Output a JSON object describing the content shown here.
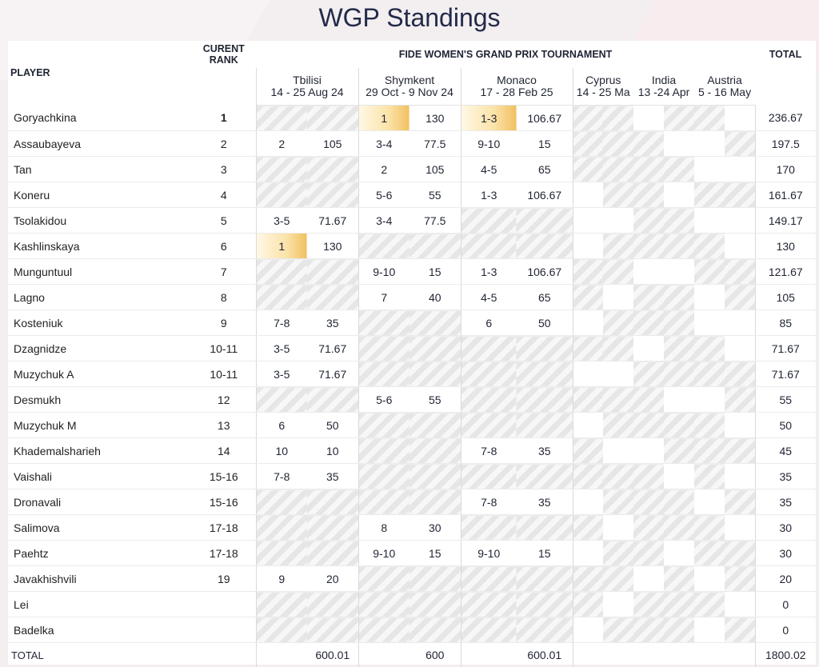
{
  "page_title": "WGP Standings",
  "headers": {
    "player": "PLAYER",
    "rank_line1": "CURENT",
    "rank_line2": "RANK",
    "tournament": "FIDE WOMEN'S GRAND PRIX TOURNAMENT",
    "total": "TOTAL"
  },
  "events": [
    {
      "name": "Tbilisi",
      "dates": "14 - 25 Aug 24"
    },
    {
      "name": "Shymkent",
      "dates": "29 Oct - 9 Nov 24"
    },
    {
      "name": "Monaco",
      "dates": "17 - 28 Feb 25"
    },
    {
      "name": "Cyprus",
      "dates": "14 - 25 Ma"
    },
    {
      "name": "India",
      "dates": "13 -24 Apr"
    },
    {
      "name": "Austria",
      "dates": "5 - 16 May"
    }
  ],
  "rows": [
    {
      "player": "Goryachkina",
      "rank": "1",
      "rank_bold": true,
      "t": [
        "",
        ""
      ],
      "s": [
        "1",
        "130"
      ],
      "m": [
        "1-3",
        "106.67"
      ],
      "total": "236.67",
      "gold_s": true,
      "gold_m": true,
      "hatch_t": true
    },
    {
      "player": "Assaubayeva",
      "rank": "2",
      "t": [
        "2",
        "105"
      ],
      "s": [
        "3-4",
        "77.5"
      ],
      "m": [
        "9-10",
        "15"
      ],
      "total": "197.5"
    },
    {
      "player": "Tan",
      "rank": "3",
      "t": [
        "",
        ""
      ],
      "s": [
        "2",
        "105"
      ],
      "m": [
        "4-5",
        "65"
      ],
      "total": "170",
      "hatch_t": true
    },
    {
      "player": "Koneru",
      "rank": "4",
      "t": [
        "",
        ""
      ],
      "s": [
        "5-6",
        "55"
      ],
      "m": [
        "1-3",
        "106.67"
      ],
      "total": "161.67",
      "hatch_t": true
    },
    {
      "player": "Tsolakidou",
      "rank": "5",
      "t": [
        "3-5",
        "71.67"
      ],
      "s": [
        "3-4",
        "77.5"
      ],
      "m": [
        "",
        ""
      ],
      "total": "149.17",
      "hatch_m": true
    },
    {
      "player": "Kashlinskaya",
      "rank": "6",
      "t": [
        "1",
        "130"
      ],
      "s": [
        "",
        ""
      ],
      "m": [
        "",
        ""
      ],
      "total": "130",
      "gold_t": true,
      "hatch_s": true,
      "hatch_m": true
    },
    {
      "player": "Munguntuul",
      "rank": "7",
      "t": [
        "",
        ""
      ],
      "s": [
        "9-10",
        "15"
      ],
      "m": [
        "1-3",
        "106.67"
      ],
      "total": "121.67",
      "hatch_t": true
    },
    {
      "player": "Lagno",
      "rank": "8",
      "t": [
        "",
        ""
      ],
      "s": [
        "7",
        "40"
      ],
      "m": [
        "4-5",
        "65"
      ],
      "total": "105",
      "hatch_t": true
    },
    {
      "player": "Kosteniuk",
      "rank": "9",
      "t": [
        "7-8",
        "35"
      ],
      "s": [
        "",
        ""
      ],
      "m": [
        "6",
        "50"
      ],
      "total": "85",
      "hatch_s": true
    },
    {
      "player": "Dzagnidze",
      "rank": "10-11",
      "t": [
        "3-5",
        "71.67"
      ],
      "s": [
        "",
        ""
      ],
      "m": [
        "",
        ""
      ],
      "total": "71.67",
      "hatch_s": true,
      "hatch_m": true
    },
    {
      "player": "Muzychuk A",
      "rank": "10-11",
      "t": [
        "3-5",
        "71.67"
      ],
      "s": [
        "",
        ""
      ],
      "m": [
        "",
        ""
      ],
      "total": "71.67",
      "hatch_s": true,
      "hatch_m": true
    },
    {
      "player": "Desmukh",
      "rank": "12",
      "t": [
        "",
        ""
      ],
      "s": [
        "5-6",
        "55"
      ],
      "m": [
        "",
        ""
      ],
      "total": "55",
      "hatch_t": true,
      "hatch_m": true
    },
    {
      "player": "Muzychuk M",
      "rank": "13",
      "t": [
        "6",
        "50"
      ],
      "s": [
        "",
        ""
      ],
      "m": [
        "",
        ""
      ],
      "total": "50",
      "hatch_s": true,
      "hatch_m": true
    },
    {
      "player": "Khademalsharieh",
      "rank": "14",
      "t": [
        "10",
        "10"
      ],
      "s": [
        "",
        ""
      ],
      "m": [
        "7-8",
        "35"
      ],
      "total": "45",
      "hatch_s": true
    },
    {
      "player": "Vaishali",
      "rank": "15-16",
      "t": [
        "7-8",
        "35"
      ],
      "s": [
        "",
        ""
      ],
      "m": [
        "",
        ""
      ],
      "total": "35",
      "hatch_s": true,
      "hatch_m": true
    },
    {
      "player": "Dronavali",
      "rank": "15-16",
      "t": [
        "",
        ""
      ],
      "s": [
        "",
        ""
      ],
      "m": [
        "7-8",
        "35"
      ],
      "total": "35",
      "hatch_t": true,
      "hatch_s": true
    },
    {
      "player": "Salimova",
      "rank": "17-18",
      "t": [
        "",
        ""
      ],
      "s": [
        "8",
        "30"
      ],
      "m": [
        "",
        ""
      ],
      "total": "30",
      "hatch_t": true,
      "hatch_m": true
    },
    {
      "player": "Paehtz",
      "rank": "17-18",
      "t": [
        "",
        ""
      ],
      "s": [
        "9-10",
        "15"
      ],
      "m": [
        "9-10",
        "15"
      ],
      "total": "30",
      "hatch_t": true
    },
    {
      "player": "Javakhishvili",
      "rank": "19",
      "t": [
        "9",
        "20"
      ],
      "s": [
        "",
        ""
      ],
      "m": [
        "",
        ""
      ],
      "total": "20",
      "hatch_s": true,
      "hatch_m": true
    },
    {
      "player": "Lei",
      "rank": "",
      "t": [
        "",
        ""
      ],
      "s": [
        "",
        ""
      ],
      "m": [
        "",
        ""
      ],
      "total": "0",
      "hatch_t": true,
      "hatch_s": true,
      "hatch_m": true
    },
    {
      "player": "Badelka",
      "rank": "",
      "t": [
        "",
        ""
      ],
      "s": [
        "",
        ""
      ],
      "m": [
        "",
        ""
      ],
      "total": "0",
      "hatch_t": true,
      "hatch_s": true,
      "hatch_m": true
    }
  ],
  "totals": {
    "label": "TOTAL",
    "tbilisi": "600.01",
    "shymkent": "600",
    "monaco": "600.01",
    "grand": "1800.02"
  }
}
